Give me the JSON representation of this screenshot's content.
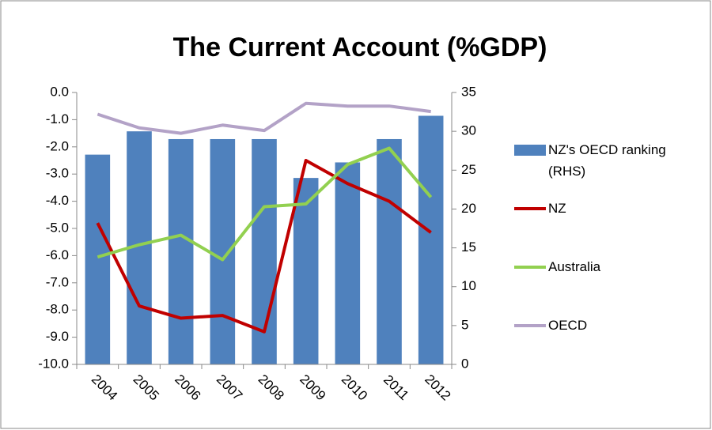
{
  "chart_data": {
    "type": "bar_line",
    "title": "The Current Account  (%GDP)",
    "categories": [
      "2004",
      "2005",
      "2006",
      "2007",
      "2008",
      "2009",
      "2010",
      "2011",
      "2012"
    ],
    "series": [
      {
        "name": "NZ's OECD ranking (RHS)",
        "type": "bar",
        "axis": "y2",
        "color": "#4f81bd",
        "values": [
          27,
          30,
          29,
          29,
          29,
          24,
          26,
          29,
          32
        ]
      },
      {
        "name": "NZ",
        "type": "line",
        "color": "#c00000",
        "values": [
          -4.8,
          -7.85,
          -8.3,
          -8.2,
          -8.8,
          -2.5,
          -3.35,
          -4.0,
          -5.15
        ]
      },
      {
        "name": "Australia",
        "type": "line",
        "color": "#92d050",
        "values": [
          -6.05,
          -5.6,
          -5.25,
          -6.15,
          -4.2,
          -4.1,
          -2.65,
          -2.05,
          -3.85
        ]
      },
      {
        "name": "OECD",
        "type": "line",
        "color": "#b3a2c7",
        "values": [
          -0.8,
          -1.3,
          -1.5,
          -1.2,
          -1.4,
          -0.4,
          -0.5,
          -0.5,
          -0.7
        ]
      }
    ],
    "ylim": [
      -10,
      0
    ],
    "yticks": [
      {
        "value": 0,
        "label": "0.0"
      },
      {
        "value": -1,
        "label": "-1.0"
      },
      {
        "value": -2,
        "label": "-2.0"
      },
      {
        "value": -3,
        "label": "-3.0"
      },
      {
        "value": -4,
        "label": "-4.0"
      },
      {
        "value": -5,
        "label": "-5.0"
      },
      {
        "value": -6,
        "label": "-6.0"
      },
      {
        "value": -7,
        "label": "-7.0"
      },
      {
        "value": -8,
        "label": "-8.0"
      },
      {
        "value": -9,
        "label": "-9.0"
      },
      {
        "value": -10,
        "label": "-10.0"
      }
    ],
    "y2lim": [
      0,
      35
    ],
    "y2ticks": [
      0,
      5,
      10,
      15,
      20,
      25,
      30,
      35
    ],
    "grid": false,
    "legend": "right"
  }
}
